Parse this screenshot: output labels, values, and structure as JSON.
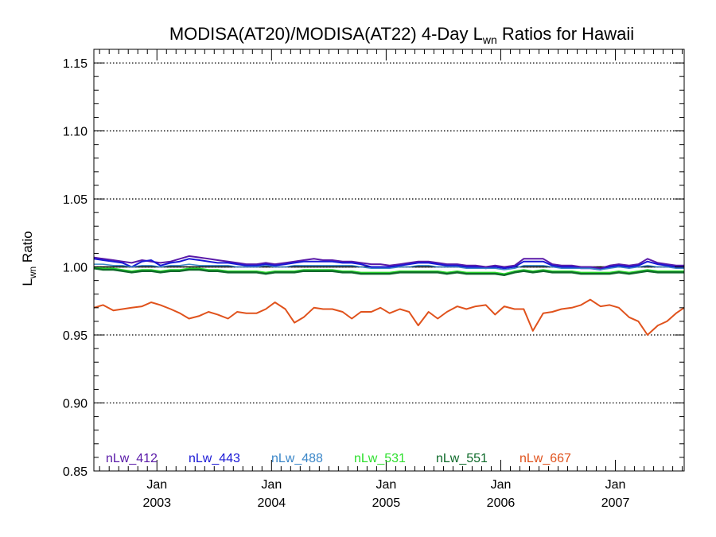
{
  "chart_data": {
    "type": "line",
    "title": {
      "prefix": "MODISA(AT20)/MODISA(AT22) 4-Day L",
      "sub": "wn",
      "suffix": " Ratios for Hawaii"
    },
    "ylabel": {
      "main": "L",
      "sub": "wn",
      "suffix": " Ratio"
    },
    "ylim": [
      0.85,
      1.16
    ],
    "xlim": [
      2002.45,
      2007.6
    ],
    "yticks": [
      {
        "value": 0.85,
        "label": "0.85"
      },
      {
        "value": 0.9,
        "label": "0.90"
      },
      {
        "value": 0.95,
        "label": "0.95"
      },
      {
        "value": 1.0,
        "label": "1.00"
      },
      {
        "value": 1.05,
        "label": "1.05"
      },
      {
        "value": 1.1,
        "label": "1.10"
      },
      {
        "value": 1.15,
        "label": "1.15"
      }
    ],
    "xticks": [
      {
        "value": 2003.0,
        "month": "Jan",
        "year": "2003"
      },
      {
        "value": 2004.0,
        "month": "Jan",
        "year": "2004"
      },
      {
        "value": 2005.0,
        "month": "Jan",
        "year": "2005"
      },
      {
        "value": 2006.0,
        "month": "Jan",
        "year": "2006"
      },
      {
        "value": 2007.0,
        "month": "Jan",
        "year": "2007"
      }
    ],
    "grid": "horizontal dotted",
    "reference_line": 1.0,
    "legend_position": "bottom",
    "x": [
      2002.45,
      2002.53,
      2002.62,
      2002.7,
      2002.78,
      2002.87,
      2002.95,
      2003.03,
      2003.12,
      2003.2,
      2003.28,
      2003.37,
      2003.45,
      2003.53,
      2003.62,
      2003.7,
      2003.78,
      2003.87,
      2003.95,
      2004.03,
      2004.12,
      2004.2,
      2004.28,
      2004.37,
      2004.45,
      2004.53,
      2004.62,
      2004.7,
      2004.78,
      2004.87,
      2004.95,
      2005.03,
      2005.12,
      2005.2,
      2005.28,
      2005.37,
      2005.45,
      2005.53,
      2005.62,
      2005.7,
      2005.78,
      2005.87,
      2005.95,
      2006.03,
      2006.12,
      2006.2,
      2006.28,
      2006.37,
      2006.45,
      2006.53,
      2006.62,
      2006.7,
      2006.78,
      2006.87,
      2006.95,
      2007.03,
      2007.12,
      2007.2,
      2007.28,
      2007.37,
      2007.45,
      2007.53,
      2007.6
    ],
    "series": [
      {
        "name": "nLw_412",
        "color": "#5a1aa8",
        "width": 2,
        "values": [
          1.007,
          1.006,
          1.005,
          1.004,
          1.003,
          1.005,
          1.004,
          1.003,
          1.004,
          1.006,
          1.008,
          1.007,
          1.006,
          1.005,
          1.004,
          1.003,
          1.002,
          1.002,
          1.003,
          1.002,
          1.003,
          1.004,
          1.005,
          1.006,
          1.005,
          1.005,
          1.004,
          1.004,
          1.003,
          1.002,
          1.002,
          1.001,
          1.002,
          1.003,
          1.004,
          1.004,
          1.003,
          1.002,
          1.002,
          1.001,
          1.001,
          1.0,
          1.001,
          1.0,
          1.001,
          1.006,
          1.006,
          1.006,
          1.002,
          1.001,
          1.001,
          1.0,
          1.0,
          0.999,
          1.001,
          1.002,
          1.001,
          1.002,
          1.006,
          1.003,
          1.002,
          1.001,
          1.001
        ]
      },
      {
        "name": "nLw_443",
        "color": "#1a18d6",
        "width": 2,
        "values": [
          1.006,
          1.005,
          1.004,
          1.003,
          1.0,
          1.004,
          1.005,
          1.001,
          1.003,
          1.004,
          1.006,
          1.005,
          1.004,
          1.003,
          1.003,
          1.002,
          1.001,
          1.001,
          1.002,
          1.001,
          1.002,
          1.003,
          1.004,
          1.004,
          1.004,
          1.004,
          1.003,
          1.003,
          1.002,
          1.0,
          1.0,
          1.0,
          1.001,
          1.002,
          1.003,
          1.003,
          1.002,
          1.001,
          1.001,
          1.0,
          1.0,
          0.999,
          1.0,
          0.999,
          1.0,
          1.004,
          1.004,
          1.004,
          1.001,
          1.0,
          1.0,
          0.999,
          0.999,
          0.998,
          1.0,
          1.001,
          1.0,
          1.001,
          1.004,
          1.002,
          1.001,
          1.0,
          1.0
        ]
      },
      {
        "name": "nLw_488",
        "color": "#3a86c8",
        "width": 1.5,
        "values": [
          1.002,
          1.002,
          1.001,
          1.001,
          1.0,
          1.001,
          1.001,
          1.0,
          1.001,
          1.001,
          1.002,
          1.001,
          1.001,
          1.001,
          1.001,
          1.0,
          1.0,
          1.0,
          1.001,
          1.0,
          1.0,
          1.001,
          1.001,
          1.001,
          1.001,
          1.001,
          1.001,
          1.001,
          1.0,
          0.999,
          0.999,
          0.999,
          1.0,
          1.0,
          1.001,
          1.001,
          1.0,
          1.0,
          1.0,
          0.999,
          0.999,
          0.999,
          0.999,
          0.998,
          0.999,
          1.001,
          1.001,
          1.001,
          1.0,
          0.999,
          0.999,
          0.999,
          0.999,
          0.998,
          0.999,
          1.0,
          0.999,
          1.0,
          1.001,
          1.0,
          1.0,
          0.999,
          0.999
        ]
      },
      {
        "name": "nLw_531",
        "color": "#2ee02e",
        "width": 1.5,
        "values": [
          1.0,
          0.999,
          0.999,
          0.998,
          0.997,
          0.998,
          0.998,
          0.997,
          0.998,
          0.998,
          0.999,
          0.999,
          0.998,
          0.998,
          0.997,
          0.997,
          0.997,
          0.997,
          0.996,
          0.997,
          0.997,
          0.997,
          0.998,
          0.998,
          0.998,
          0.998,
          0.997,
          0.997,
          0.996,
          0.996,
          0.996,
          0.996,
          0.997,
          0.997,
          0.997,
          0.997,
          0.997,
          0.996,
          0.997,
          0.996,
          0.996,
          0.996,
          0.996,
          0.995,
          0.997,
          0.998,
          0.997,
          0.998,
          0.997,
          0.997,
          0.997,
          0.996,
          0.996,
          0.996,
          0.996,
          0.997,
          0.996,
          0.997,
          0.998,
          0.997,
          0.997,
          0.997,
          0.997
        ]
      },
      {
        "name": "nLw_551",
        "color": "#0e6a2a",
        "width": 2.5,
        "values": [
          0.999,
          0.998,
          0.998,
          0.997,
          0.996,
          0.997,
          0.997,
          0.996,
          0.997,
          0.997,
          0.998,
          0.998,
          0.997,
          0.997,
          0.996,
          0.996,
          0.996,
          0.996,
          0.995,
          0.996,
          0.996,
          0.996,
          0.997,
          0.997,
          0.997,
          0.997,
          0.996,
          0.996,
          0.995,
          0.995,
          0.995,
          0.995,
          0.996,
          0.996,
          0.996,
          0.996,
          0.996,
          0.995,
          0.996,
          0.995,
          0.995,
          0.995,
          0.995,
          0.994,
          0.996,
          0.997,
          0.996,
          0.997,
          0.996,
          0.996,
          0.996,
          0.995,
          0.995,
          0.995,
          0.995,
          0.996,
          0.995,
          0.996,
          0.997,
          0.996,
          0.996,
          0.996,
          0.996
        ]
      },
      {
        "name": "nLw_667",
        "color": "#e0521c",
        "width": 2,
        "values": [
          0.97,
          0.972,
          0.968,
          0.969,
          0.97,
          0.971,
          0.974,
          0.972,
          0.969,
          0.966,
          0.962,
          0.964,
          0.967,
          0.965,
          0.962,
          0.967,
          0.966,
          0.966,
          0.969,
          0.974,
          0.969,
          0.959,
          0.963,
          0.97,
          0.969,
          0.969,
          0.967,
          0.962,
          0.967,
          0.967,
          0.97,
          0.966,
          0.969,
          0.967,
          0.957,
          0.967,
          0.962,
          0.967,
          0.971,
          0.969,
          0.971,
          0.972,
          0.965,
          0.971,
          0.969,
          0.969,
          0.953,
          0.966,
          0.967,
          0.969,
          0.97,
          0.972,
          0.976,
          0.971,
          0.972,
          0.97,
          0.963,
          0.96,
          0.95,
          0.957,
          0.96,
          0.966,
          0.97
        ]
      }
    ]
  }
}
